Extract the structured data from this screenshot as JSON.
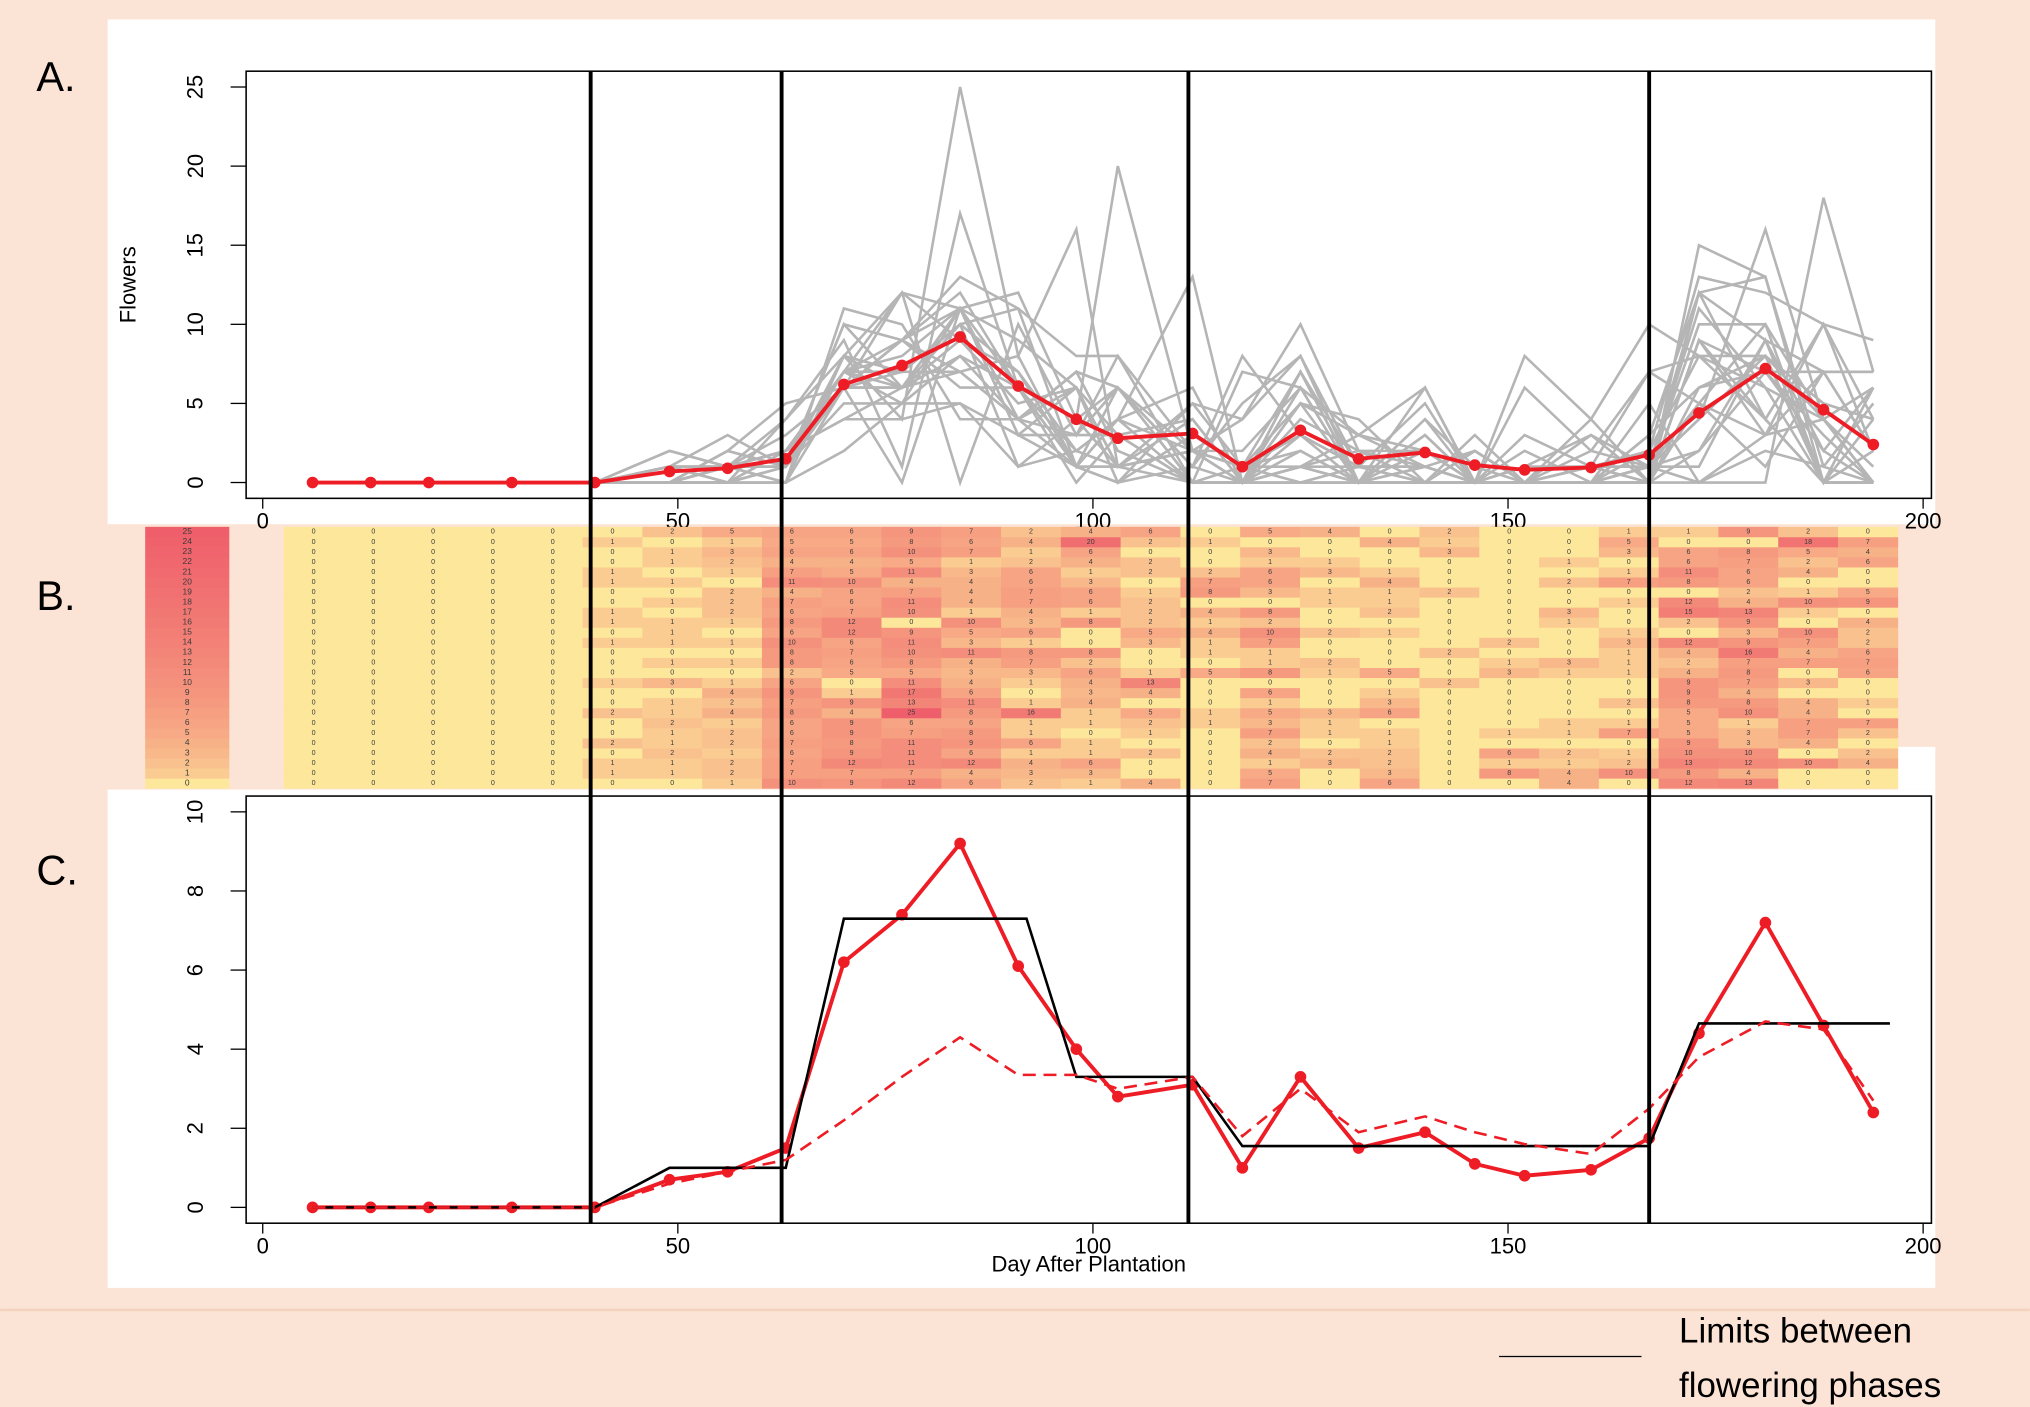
{
  "chart_data": [
    {
      "type": "line",
      "label": "A.",
      "y_label": "Flowers",
      "x": [
        6,
        13,
        20,
        30,
        40,
        49,
        56,
        63,
        70,
        77,
        84,
        91,
        98,
        103,
        112,
        118,
        125,
        132,
        140,
        146,
        152,
        160,
        167,
        173,
        181,
        188,
        194
      ],
      "xlim": [
        -2,
        201
      ],
      "xticks": [
        0,
        50,
        100,
        150,
        200
      ],
      "ylim": [
        -1,
        26
      ],
      "yticks": [
        0,
        5,
        10,
        15,
        20,
        25
      ],
      "individuals": {
        "color": "#b5b5b5",
        "values": [
          [
            0,
            0,
            0,
            0,
            0,
            0,
            0,
            1,
            10,
            9,
            12,
            6,
            2,
            1,
            4,
            0,
            7,
            0,
            6,
            0,
            0,
            4,
            0,
            12,
            13,
            0,
            0
          ],
          [
            0,
            0,
            0,
            0,
            0,
            1,
            1,
            2,
            7,
            7,
            7,
            4,
            3,
            3,
            0,
            0,
            5,
            0,
            3,
            0,
            8,
            4,
            10,
            8,
            4,
            0,
            0
          ],
          [
            0,
            0,
            0,
            0,
            0,
            1,
            1,
            2,
            7,
            12,
            11,
            12,
            4,
            6,
            0,
            0,
            1,
            3,
            2,
            0,
            1,
            1,
            2,
            13,
            12,
            10,
            4
          ],
          [
            0,
            0,
            0,
            0,
            0,
            0,
            2,
            1,
            6,
            9,
            11,
            6,
            1,
            1,
            2,
            0,
            4,
            2,
            2,
            0,
            6,
            2,
            1,
            10,
            10,
            0,
            2
          ],
          [
            0,
            0,
            0,
            0,
            0,
            2,
            1,
            2,
            7,
            8,
            11,
            9,
            6,
            1,
            0,
            0,
            2,
            0,
            1,
            0,
            0,
            0,
            0,
            9,
            3,
            4,
            0
          ],
          [
            0,
            0,
            0,
            0,
            0,
            0,
            1,
            2,
            6,
            9,
            7,
            8,
            1,
            0,
            1,
            0,
            7,
            1,
            1,
            0,
            1,
            1,
            7,
            5,
            3,
            7,
            2
          ],
          [
            0,
            0,
            0,
            0,
            0,
            0,
            2,
            1,
            6,
            9,
            6,
            6,
            1,
            1,
            2,
            1,
            3,
            1,
            0,
            0,
            0,
            1,
            1,
            5,
            1,
            7,
            7
          ],
          [
            0,
            0,
            0,
            0,
            0,
            2,
            1,
            4,
            8,
            4,
            25,
            8,
            16,
            1,
            5,
            1,
            5,
            3,
            6,
            0,
            0,
            0,
            0,
            5,
            10,
            4,
            0
          ],
          [
            0,
            0,
            0,
            0,
            0,
            0,
            1,
            2,
            7,
            9,
            13,
            11,
            1,
            4,
            0,
            0,
            1,
            0,
            3,
            0,
            0,
            0,
            2,
            8,
            8,
            4,
            1
          ],
          [
            0,
            0,
            0,
            0,
            0,
            0,
            0,
            4,
            9,
            1,
            17,
            6,
            0,
            3,
            4,
            0,
            6,
            0,
            1,
            0,
            0,
            0,
            0,
            9,
            4,
            0,
            0
          ],
          [
            0,
            0,
            0,
            0,
            0,
            1,
            3,
            1,
            6,
            0,
            11,
            4,
            1,
            4,
            13,
            0,
            0,
            0,
            0,
            2,
            0,
            0,
            0,
            9,
            7,
            3,
            0
          ],
          [
            0,
            0,
            0,
            0,
            0,
            0,
            0,
            0,
            2,
            5,
            5,
            3,
            3,
            6,
            1,
            5,
            8,
            1,
            5,
            0,
            3,
            1,
            1,
            4,
            8,
            0,
            6
          ],
          [
            0,
            0,
            0,
            0,
            0,
            0,
            1,
            1,
            8,
            6,
            8,
            4,
            7,
            2,
            0,
            0,
            1,
            2,
            0,
            0,
            1,
            3,
            1,
            2,
            7,
            7,
            7
          ],
          [
            0,
            0,
            0,
            0,
            0,
            0,
            0,
            0,
            8,
            7,
            10,
            11,
            8,
            8,
            0,
            1,
            1,
            0,
            0,
            2,
            0,
            0,
            1,
            4,
            16,
            4,
            6
          ],
          [
            0,
            0,
            0,
            0,
            0,
            1,
            1,
            1,
            10,
            6,
            11,
            3,
            1,
            0,
            3,
            1,
            7,
            0,
            0,
            0,
            2,
            0,
            3,
            12,
            9,
            7,
            2
          ],
          [
            0,
            0,
            0,
            0,
            0,
            0,
            1,
            0,
            6,
            12,
            9,
            5,
            6,
            0,
            5,
            4,
            10,
            2,
            1,
            0,
            0,
            0,
            1,
            0,
            3,
            10,
            2
          ],
          [
            0,
            0,
            0,
            0,
            0,
            1,
            1,
            1,
            8,
            12,
            0,
            10,
            3,
            8,
            2,
            1,
            2,
            0,
            0,
            0,
            0,
            1,
            0,
            2,
            9,
            0,
            4
          ],
          [
            0,
            0,
            0,
            0,
            0,
            1,
            0,
            2,
            6,
            7,
            10,
            1,
            4,
            1,
            2,
            4,
            8,
            0,
            2,
            0,
            0,
            3,
            0,
            15,
            13,
            1,
            0
          ],
          [
            0,
            0,
            0,
            0,
            0,
            0,
            1,
            2,
            7,
            6,
            11,
            4,
            7,
            6,
            2,
            0,
            0,
            1,
            1,
            0,
            0,
            0,
            1,
            12,
            4,
            10,
            9
          ],
          [
            0,
            0,
            0,
            0,
            0,
            0,
            0,
            2,
            4,
            6,
            7,
            4,
            7,
            6,
            1,
            8,
            3,
            1,
            1,
            2,
            0,
            0,
            0,
            0,
            2,
            1,
            5
          ],
          [
            0,
            0,
            0,
            0,
            0,
            1,
            1,
            0,
            11,
            10,
            4,
            4,
            6,
            3,
            0,
            7,
            6,
            0,
            4,
            0,
            0,
            2,
            7,
            8,
            6,
            0,
            0
          ],
          [
            0,
            0,
            0,
            0,
            0,
            1,
            0,
            1,
            7,
            5,
            11,
            3,
            6,
            1,
            2,
            2,
            6,
            3,
            1,
            0,
            0,
            0,
            1,
            11,
            6,
            4,
            0
          ],
          [
            0,
            0,
            0,
            0,
            0,
            0,
            1,
            2,
            4,
            4,
            5,
            1,
            2,
            4,
            2,
            0,
            1,
            1,
            0,
            0,
            0,
            1,
            0,
            6,
            7,
            2,
            6
          ],
          [
            0,
            0,
            0,
            0,
            0,
            0,
            1,
            3,
            6,
            6,
            10,
            7,
            1,
            6,
            0,
            0,
            3,
            0,
            0,
            3,
            0,
            0,
            3,
            6,
            8,
            5,
            4
          ],
          [
            0,
            0,
            0,
            0,
            0,
            1,
            0,
            1,
            5,
            5,
            8,
            6,
            4,
            20,
            2,
            1,
            0,
            0,
            4,
            1,
            0,
            0,
            5,
            0,
            0,
            18,
            7
          ],
          [
            0,
            0,
            0,
            0,
            0,
            0,
            2,
            5,
            6,
            6,
            9,
            7,
            2,
            4,
            6,
            0,
            5,
            4,
            0,
            2,
            0,
            0,
            1,
            1,
            9,
            2,
            0
          ]
        ]
      },
      "mean": {
        "color": "#ee1c25",
        "values": [
          0,
          0,
          0,
          0,
          0,
          0.7,
          0.9,
          1.5,
          6.2,
          7.4,
          9.2,
          6.1,
          4.0,
          2.8,
          3.1,
          1.0,
          3.3,
          1.5,
          1.9,
          1.1,
          0.8,
          0.95,
          1.75,
          4.4,
          7.2,
          4.6,
          2.4
        ]
      }
    },
    {
      "type": "heatmap",
      "label": "B.",
      "colors": [
        "#fde79a",
        "#ef5f6b"
      ],
      "text_color": "#3a3a3a",
      "colorbar_ticks": [
        0,
        1,
        2,
        3,
        4,
        5,
        6,
        7,
        8,
        9,
        10,
        11,
        12,
        13,
        14,
        15,
        16,
        17,
        18,
        19,
        20,
        21,
        22,
        23,
        24,
        25
      ]
    },
    {
      "type": "line",
      "label": "C.",
      "x_label": "Day After Plantation",
      "x": [
        6,
        13,
        20,
        30,
        40,
        49,
        56,
        63,
        70,
        77,
        84,
        91,
        98,
        103,
        112,
        118,
        125,
        132,
        140,
        146,
        152,
        160,
        167,
        173,
        181,
        188,
        194
      ],
      "xlim": [
        -2,
        201
      ],
      "xticks": [
        0,
        50,
        100,
        150,
        200
      ],
      "ylim": [
        -0.4,
        10.4
      ],
      "yticks": [
        0,
        2,
        4,
        6,
        8,
        10
      ],
      "series": [
        {
          "color": "#ee1c25",
          "markers": true,
          "values": [
            0,
            0,
            0,
            0,
            0,
            0.7,
            0.9,
            1.5,
            6.2,
            7.4,
            9.2,
            6.1,
            4.0,
            2.8,
            3.1,
            1.0,
            3.3,
            1.5,
            1.9,
            1.1,
            0.8,
            0.95,
            1.75,
            4.4,
            7.2,
            4.6,
            2.4
          ]
        },
        {
          "color": "#000000",
          "x": [
            6,
            40,
            49,
            63,
            70,
            92,
            98,
            112,
            118,
            167,
            173,
            196
          ],
          "values": [
            0,
            0,
            1.0,
            1.0,
            7.3,
            7.3,
            3.3,
            3.3,
            1.55,
            1.55,
            4.65,
            4.65
          ]
        },
        {
          "color": "#ee1c25",
          "dashed": true,
          "values": [
            0,
            0,
            0,
            0,
            0,
            0.6,
            0.9,
            1.2,
            2.2,
            3.3,
            4.3,
            3.35,
            3.35,
            3.0,
            3.3,
            1.8,
            3.0,
            1.9,
            2.3,
            1.9,
            1.6,
            1.35,
            2.5,
            3.8,
            4.7,
            4.5,
            2.7
          ]
        }
      ]
    }
  ],
  "phase_limits": {
    "x": [
      39.5,
      62.5,
      111.5,
      167
    ],
    "color": "#000000",
    "legend": [
      "Limits between",
      "flowering phases"
    ]
  }
}
